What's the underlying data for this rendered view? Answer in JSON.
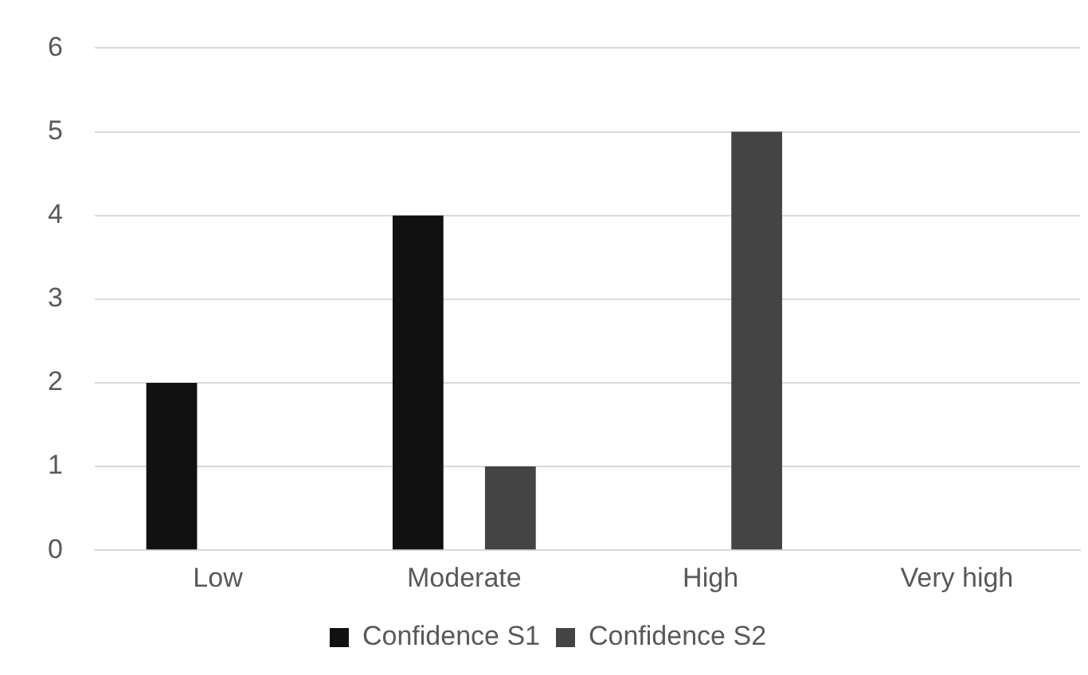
{
  "chart_data": {
    "type": "bar",
    "categories": [
      "Low",
      "Moderate",
      "High",
      "Very high"
    ],
    "series": [
      {
        "name": "Confidence S1",
        "color": "#111111",
        "values": [
          2,
          4,
          0,
          0
        ]
      },
      {
        "name": "Confidence S2",
        "color": "#444444",
        "values": [
          0,
          1,
          5,
          0
        ]
      }
    ],
    "ylim": [
      0,
      6
    ],
    "yticks": [
      0,
      1,
      2,
      3,
      4,
      5,
      6
    ],
    "grid": "y",
    "legend": "bottom"
  }
}
